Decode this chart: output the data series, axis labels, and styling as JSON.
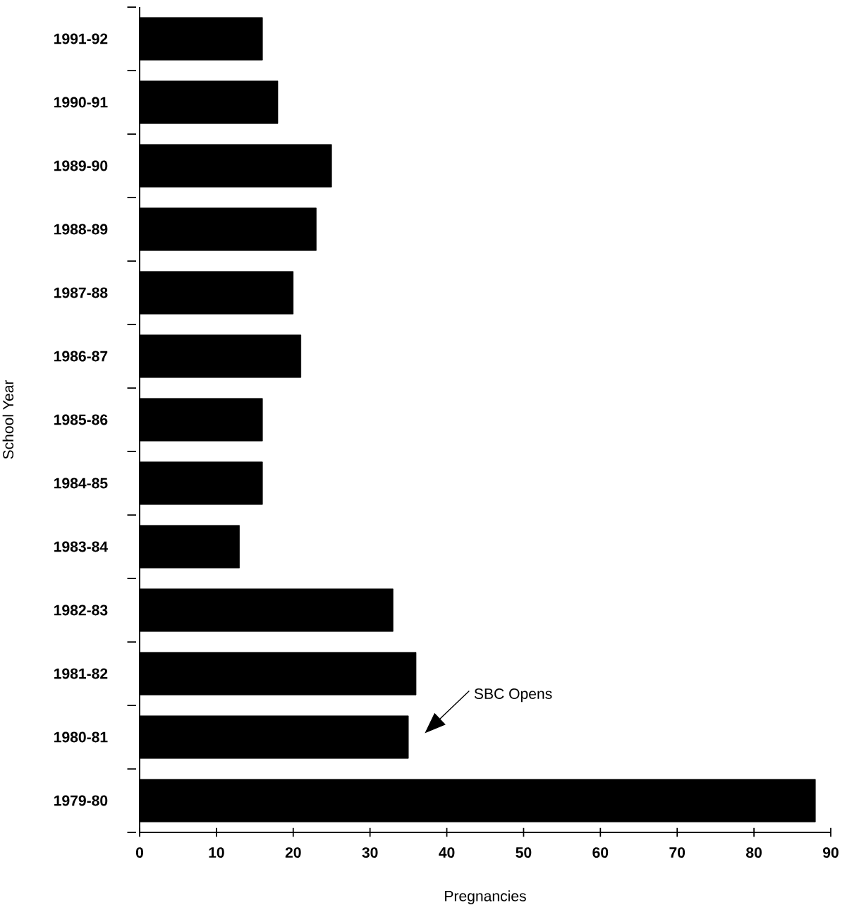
{
  "chart_data": {
    "type": "bar",
    "orientation": "horizontal",
    "xlabel": "Pregnancies",
    "ylabel": "School Year",
    "categories": [
      "1991-92",
      "1990-91",
      "1989-90",
      "1988-89",
      "1987-88",
      "1986-87",
      "1985-86",
      "1984-85",
      "1983-84",
      "1982-83",
      "1981-82",
      "1980-81",
      "1979-80"
    ],
    "values": [
      16,
      18,
      25,
      23,
      20,
      21,
      16,
      16,
      13,
      33,
      36,
      35,
      88
    ],
    "color": "#000000",
    "xlim": [
      0,
      90
    ],
    "xticks": [
      0,
      10,
      20,
      30,
      40,
      50,
      60,
      70,
      80,
      90
    ],
    "annotations": [
      "SBC Opens"
    ]
  }
}
